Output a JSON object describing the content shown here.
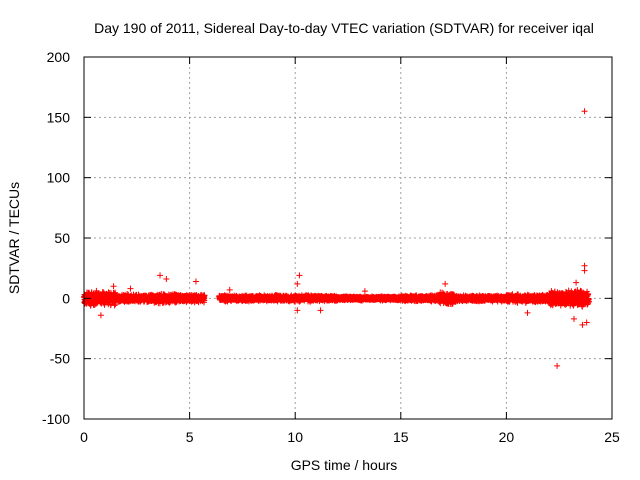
{
  "chart_data": {
    "type": "scatter",
    "title": "Day 190 of 2011, Sidereal Day-to-day VTEC variation (SDTVAR) for receiver iqal",
    "xlabel": "GPS time / hours",
    "ylabel": "SDTVAR / TECUs",
    "xlim": [
      0,
      25
    ],
    "ylim": [
      -100,
      200
    ],
    "xticks": [
      0,
      5,
      10,
      15,
      20,
      25
    ],
    "yticks": [
      -100,
      -50,
      0,
      50,
      100,
      150,
      200
    ],
    "xtick_labels": [
      "0",
      "5",
      "10",
      "15",
      "20",
      "25"
    ],
    "ytick_labels": [
      "-100",
      "-50",
      "0",
      "50",
      "100",
      "150",
      "200"
    ],
    "grid": true,
    "marker": "+",
    "color": "#ff0000",
    "band_segments": [
      {
        "x": [
          0.0,
          1.5
        ],
        "spread": 7
      },
      {
        "x": [
          1.5,
          3.0
        ],
        "spread": 4
      },
      {
        "x": [
          3.0,
          4.5
        ],
        "spread": 5
      },
      {
        "x": [
          4.5,
          5.7
        ],
        "spread": 4
      },
      {
        "x": [
          6.4,
          9.5
        ],
        "spread": 3
      },
      {
        "x": [
          9.5,
          12.0
        ],
        "spread": 3
      },
      {
        "x": [
          12.0,
          15.0
        ],
        "spread": 2
      },
      {
        "x": [
          15.0,
          16.8
        ],
        "spread": 3
      },
      {
        "x": [
          16.8,
          17.6
        ],
        "spread": 6
      },
      {
        "x": [
          17.6,
          20.0
        ],
        "spread": 3
      },
      {
        "x": [
          20.0,
          22.0
        ],
        "spread": 4
      },
      {
        "x": [
          22.0,
          23.9
        ],
        "spread": 8
      }
    ],
    "outliers": [
      {
        "x": 23.7,
        "y": 155
      },
      {
        "x": 22.4,
        "y": -56
      },
      {
        "x": 23.7,
        "y": 27
      },
      {
        "x": 23.7,
        "y": 23
      },
      {
        "x": 23.3,
        "y": 13
      },
      {
        "x": 23.6,
        "y": -22
      },
      {
        "x": 23.8,
        "y": -20
      },
      {
        "x": 23.2,
        "y": -17
      },
      {
        "x": 3.6,
        "y": 19
      },
      {
        "x": 3.9,
        "y": 16
      },
      {
        "x": 5.3,
        "y": 14
      },
      {
        "x": 10.2,
        "y": 19
      },
      {
        "x": 10.1,
        "y": 12
      },
      {
        "x": 17.1,
        "y": 12
      },
      {
        "x": 0.8,
        "y": -14
      },
      {
        "x": 1.4,
        "y": 10
      },
      {
        "x": 10.1,
        "y": -10
      },
      {
        "x": 11.2,
        "y": -10
      },
      {
        "x": 21.0,
        "y": -12
      },
      {
        "x": 2.2,
        "y": 8
      },
      {
        "x": 6.9,
        "y": 7
      },
      {
        "x": 13.3,
        "y": 6
      }
    ]
  }
}
